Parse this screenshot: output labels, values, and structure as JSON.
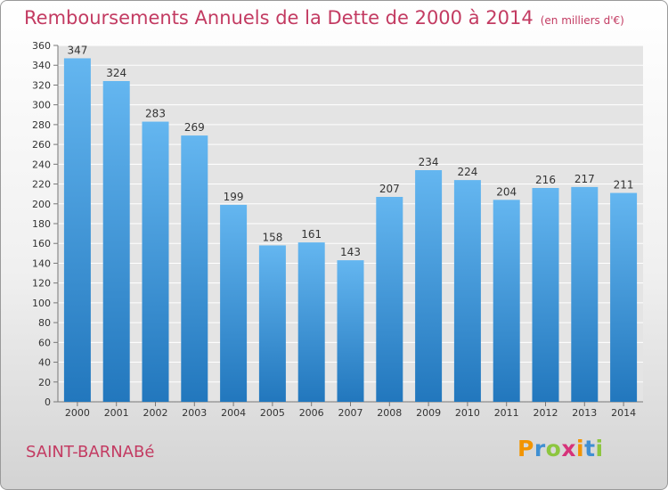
{
  "header": {
    "title": "Remboursements Annuels de la Dette de 2000 à 2014",
    "unit": "(en milliers d'€)"
  },
  "footer": {
    "commune": "SAINT-BARNABé",
    "brand": "Proxiti"
  },
  "colors": {
    "accent": "#c33b62",
    "bar_top": "#64b6f0",
    "bar_bottom": "#2277bd",
    "brand_letters": [
      "#f29400",
      "#3f8fd2",
      "#8dc63f",
      "#d6337a",
      "#f29400",
      "#3f8fd2",
      "#8dc63f"
    ]
  },
  "chart_data": {
    "type": "bar",
    "title": "Remboursements Annuels de la Dette de 2000 à 2014",
    "subtitle": "(en milliers d'€)",
    "xlabel": "",
    "ylabel": "",
    "categories": [
      "2000",
      "2001",
      "2002",
      "2003",
      "2004",
      "2005",
      "2006",
      "2007",
      "2008",
      "2009",
      "2010",
      "2011",
      "2012",
      "2013",
      "2014"
    ],
    "values": [
      347,
      324,
      283,
      269,
      199,
      158,
      161,
      143,
      207,
      234,
      224,
      204,
      216,
      217,
      211
    ],
    "ylim": [
      0,
      360
    ],
    "yticks": [
      0,
      20,
      40,
      60,
      80,
      100,
      120,
      140,
      160,
      180,
      200,
      220,
      240,
      260,
      280,
      300,
      320,
      340,
      360
    ],
    "grid": "horizontal",
    "data_labels": true
  }
}
